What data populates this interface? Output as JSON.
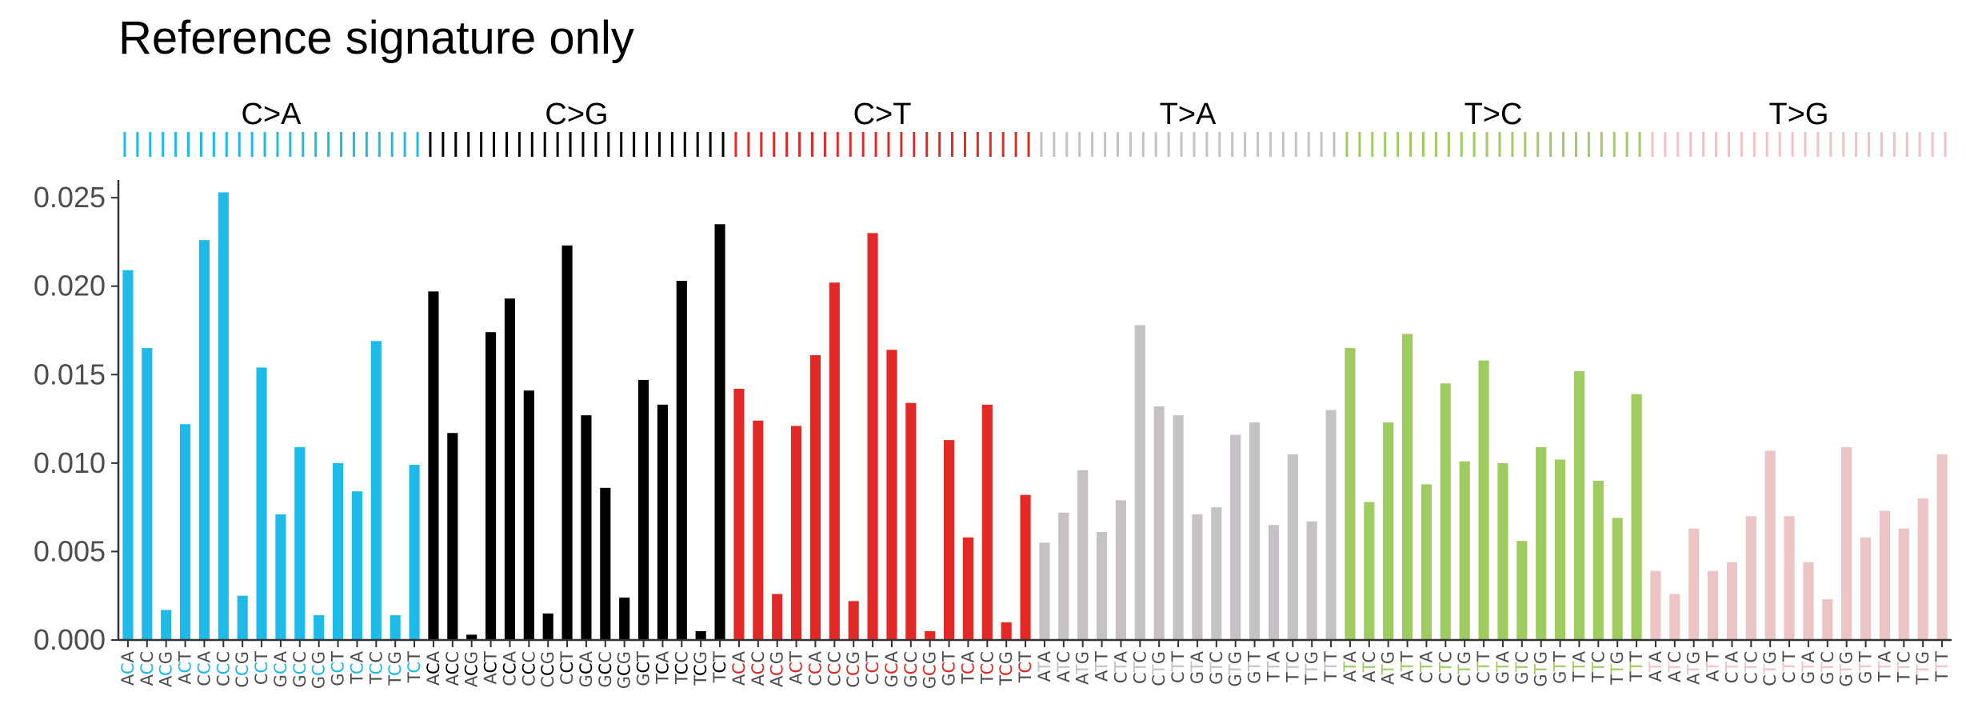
{
  "chart_data": {
    "type": "bar",
    "title": "Reference signature only",
    "xlabel": "",
    "ylabel": "",
    "ylim": [
      0,
      0.026
    ],
    "yticks": [
      "0.000",
      "0.005",
      "0.010",
      "0.015",
      "0.020",
      "0.025"
    ],
    "ytick_values": [
      0,
      0.005,
      0.01,
      0.015,
      0.02,
      0.025
    ],
    "grid": false,
    "legend": "none",
    "groups": [
      {
        "name": "C>A",
        "color": "#1ebbe9",
        "categories": [
          "ACA",
          "ACC",
          "ACG",
          "ACT",
          "CCA",
          "CCC",
          "CCG",
          "CCT",
          "GCA",
          "GCC",
          "GCG",
          "GCT",
          "TCA",
          "TCC",
          "TCG",
          "TCT"
        ],
        "values": [
          0.0209,
          0.0165,
          0.0017,
          0.0122,
          0.0226,
          0.0253,
          0.0025,
          0.0154,
          0.0071,
          0.0109,
          0.0014,
          0.01,
          0.0084,
          0.0169,
          0.0014,
          0.0099
        ]
      },
      {
        "name": "C>G",
        "color": "#000000",
        "categories": [
          "ACA",
          "ACC",
          "ACG",
          "ACT",
          "CCA",
          "CCC",
          "CCG",
          "CCT",
          "GCA",
          "GCC",
          "GCG",
          "GCT",
          "TCA",
          "TCC",
          "TCG",
          "TCT"
        ],
        "values": [
          0.0197,
          0.0117,
          0.0003,
          0.0174,
          0.0193,
          0.0141,
          0.0015,
          0.0223,
          0.0127,
          0.0086,
          0.0024,
          0.0147,
          0.0133,
          0.0203,
          0.0005,
          0.0235
        ]
      },
      {
        "name": "C>T",
        "color": "#e22926",
        "categories": [
          "ACA",
          "ACC",
          "ACG",
          "ACT",
          "CCA",
          "CCC",
          "CCG",
          "CCT",
          "GCA",
          "GCC",
          "GCG",
          "GCT",
          "TCA",
          "TCC",
          "TCG",
          "TCT"
        ],
        "values": [
          0.0142,
          0.0124,
          0.0026,
          0.0121,
          0.0161,
          0.0202,
          0.0022,
          0.023,
          0.0164,
          0.0134,
          0.0005,
          0.0113,
          0.0058,
          0.0133,
          0.001,
          0.0082
        ]
      },
      {
        "name": "T>A",
        "color": "#c5c1c4",
        "categories": [
          "ATA",
          "ATC",
          "ATG",
          "ATT",
          "CTA",
          "CTC",
          "CTG",
          "CTT",
          "GTA",
          "GTC",
          "GTG",
          "GTT",
          "TTA",
          "TTC",
          "TTG",
          "TTT"
        ],
        "values": [
          0.0055,
          0.0072,
          0.0096,
          0.0061,
          0.0079,
          0.0178,
          0.0132,
          0.0127,
          0.0071,
          0.0075,
          0.0116,
          0.0123,
          0.0065,
          0.0105,
          0.0067,
          0.013
        ]
      },
      {
        "name": "T>C",
        "color": "#9fcc60",
        "categories": [
          "ATA",
          "ATC",
          "ATG",
          "ATT",
          "CTA",
          "CTC",
          "CTG",
          "CTT",
          "GTA",
          "GTC",
          "GTG",
          "GTT",
          "TTA",
          "TTC",
          "TTG",
          "TTT"
        ],
        "values": [
          0.0165,
          0.0078,
          0.0123,
          0.0173,
          0.0088,
          0.0145,
          0.0101,
          0.0158,
          0.01,
          0.0056,
          0.0109,
          0.0102,
          0.0152,
          0.009,
          0.0069,
          0.0139
        ]
      },
      {
        "name": "T>G",
        "color": "#ecc4c4",
        "categories": [
          "ATA",
          "ATC",
          "ATG",
          "ATT",
          "CTA",
          "CTC",
          "CTG",
          "CTT",
          "GTA",
          "GTC",
          "GTG",
          "GTT",
          "TTA",
          "TTC",
          "TTG",
          "TTT"
        ],
        "values": [
          0.0039,
          0.0026,
          0.0063,
          0.0039,
          0.0044,
          0.007,
          0.0107,
          0.007,
          0.0044,
          0.0023,
          0.0109,
          0.0058,
          0.0073,
          0.0063,
          0.008,
          0.0105
        ]
      }
    ]
  }
}
